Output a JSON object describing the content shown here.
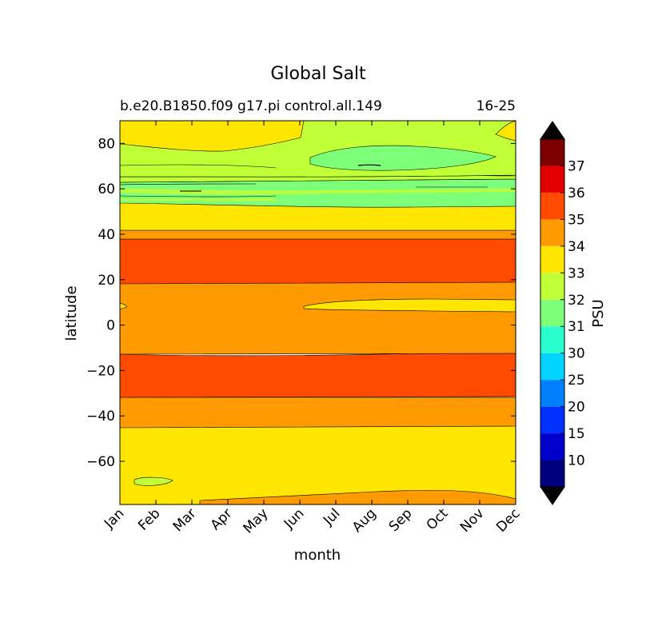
{
  "chart_data": {
    "type": "contour",
    "title": "Global Salt",
    "subtitle_left": "b.e20.B1850.f09 g17.pi control.all.149",
    "subtitle_right": "16-25",
    "xlabel": "month",
    "ylabel": "latitude",
    "x_categories": [
      "Jan",
      "Feb",
      "Mar",
      "Apr",
      "May",
      "Jun",
      "Jul",
      "Aug",
      "Sep",
      "Oct",
      "Nov",
      "Dec"
    ],
    "ylim": [
      -79,
      90
    ],
    "y_ticks": [
      -60,
      -40,
      -20,
      0,
      20,
      40,
      60,
      80
    ],
    "colorbar": {
      "label": "PSU",
      "levels": [
        10,
        15,
        20,
        25,
        30,
        31,
        32,
        33,
        34,
        35,
        36,
        37
      ],
      "colors": [
        "#00007f",
        "#0000cd",
        "#0030ff",
        "#0080ff",
        "#00d4ff",
        "#29ffce",
        "#7dff7a",
        "#c1ff36",
        "#ffe600",
        "#ff9a00",
        "#ff4a00",
        "#e30000",
        "#7f0000"
      ],
      "extend": "both",
      "under_color": "#000000",
      "over_color": "#000000"
    },
    "bands": [
      {
        "lat_from": -79,
        "lat_to": -44,
        "salinity_range": "33-34"
      },
      {
        "lat_from": -44,
        "lat_to": -32,
        "salinity_range": "34-35"
      },
      {
        "lat_from": -32,
        "lat_to": -13,
        "salinity_range": "35-36"
      },
      {
        "lat_from": -13,
        "lat_to": 19,
        "salinity_range": "34-35"
      },
      {
        "lat_from": 19,
        "lat_to": 38,
        "salinity_range": "35-36"
      },
      {
        "lat_from": 38,
        "lat_to": 42,
        "salinity_range": "34-35"
      },
      {
        "lat_from": 42,
        "lat_to": 54,
        "salinity_range": "33-34"
      },
      {
        "lat_from": 54,
        "lat_to": 62,
        "salinity_range": "31-32"
      },
      {
        "lat_from": 62,
        "lat_to": 70,
        "salinity_range": "32-33"
      },
      {
        "lat_from": 70,
        "lat_to": 90,
        "salinity_range": "32-33"
      }
    ]
  }
}
